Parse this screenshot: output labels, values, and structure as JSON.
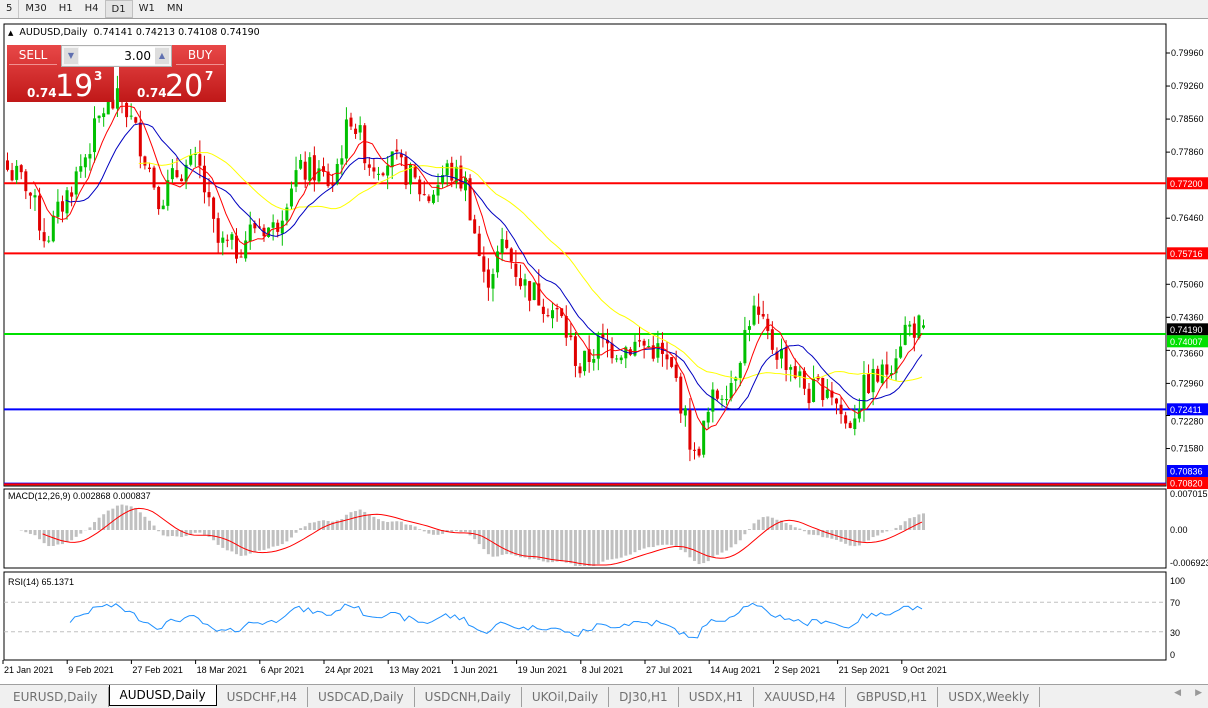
{
  "timeframes": [
    "5",
    "M30",
    "H1",
    "H4",
    "D1",
    "W1",
    "MN"
  ],
  "active_timeframe": "D1",
  "chart": {
    "symbol": "AUDUSD,Daily",
    "ohlc": "0.74141 0.74213 0.74108 0.74190",
    "current_price": "0.74190"
  },
  "trade_panel": {
    "sell_label": "SELL",
    "buy_label": "BUY",
    "lot": "3.00",
    "sell_prefix": "0.74",
    "sell_big": "19",
    "sell_sup": "3",
    "buy_prefix": "0.74",
    "buy_big": "20",
    "buy_sup": "7"
  },
  "price_axis": [
    "0.79960",
    "0.79260",
    "0.78560",
    "0.77860",
    "0.76460",
    "0.75060",
    "0.74360",
    "0.73660",
    "0.72960",
    "0.72280",
    "0.71580"
  ],
  "levels": [
    {
      "price": "0.77200",
      "color": "#ff0000"
    },
    {
      "price": "0.75716",
      "color": "#ff0000"
    },
    {
      "price": "0.74007",
      "color": "#00e000"
    },
    {
      "price": "0.72411",
      "color": "#0000ff"
    },
    {
      "price": "0.70836",
      "color": "#0000ff"
    },
    {
      "price": "0.70820",
      "color": "#ff0000"
    }
  ],
  "macd": {
    "label": "MACD(12,26,9) 0.002868 0.000837",
    "axis": [
      "0.007015",
      "0.00",
      "-0.006923"
    ]
  },
  "rsi": {
    "label": "RSI(14) 65.1371",
    "axis": [
      "100",
      "70",
      "30",
      "0"
    ]
  },
  "time_axis": [
    "21 Jan 2021",
    "9 Feb 2021",
    "27 Feb 2021",
    "18 Mar 2021",
    "6 Apr 2021",
    "24 Apr 2021",
    "13 May 2021",
    "1 Jun 2021",
    "19 Jun 2021",
    "8 Jul 2021",
    "27 Jul 2021",
    "14 Aug 2021",
    "2 Sep 2021",
    "21 Sep 2021",
    "9 Oct 2021"
  ],
  "tabs": [
    "EURUSD,Daily",
    "AUDUSD,Daily",
    "USDCHF,H4",
    "USDCAD,Daily",
    "USDCNH,Daily",
    "UKOil,Daily",
    "DJ30,H1",
    "USDX,H1",
    "XAUUSD,H4",
    "GBPUSD,H1",
    "USDX,Weekly"
  ],
  "active_tab": "AUDUSD,Daily",
  "colors": {
    "bull": "#00c000",
    "bear": "#e00000",
    "ma_fast": "#ff0000",
    "ma_mid": "#0000c0",
    "ma_slow": "#ffff00",
    "macd_hist": "#c0c0c0",
    "rsi": "#1e90ff"
  },
  "chart_data": {
    "type": "candlestick",
    "approx_closes": [
      0.7749,
      0.7718,
      0.7601,
      0.7686,
      0.777,
      0.7876,
      0.7897,
      0.7802,
      0.7686,
      0.7749,
      0.776,
      0.7591,
      0.758,
      0.7633,
      0.7622,
      0.7739,
      0.7749,
      0.7718,
      0.7865,
      0.776,
      0.777,
      0.7739,
      0.7686,
      0.7749,
      0.7718,
      0.7507,
      0.7591,
      0.7507,
      0.7475,
      0.7433,
      0.7327,
      0.738,
      0.7369,
      0.738,
      0.7369,
      0.7306,
      0.7137,
      0.7264,
      0.7306,
      0.7454,
      0.738,
      0.7338,
      0.7274,
      0.7296,
      0.7201,
      0.7296,
      0.7317,
      0.7412,
      0.7419
    ],
    "ylim": [
      0.7072,
      0.804
    ]
  }
}
